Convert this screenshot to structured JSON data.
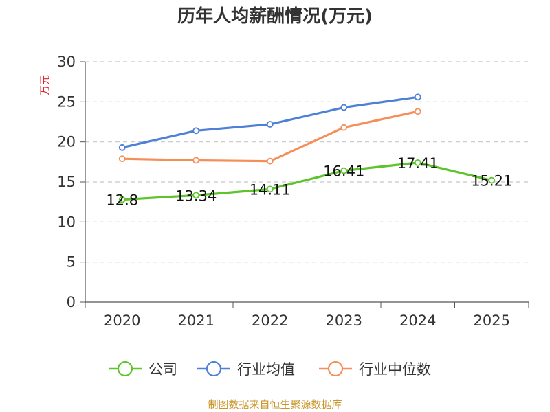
{
  "chart_data": {
    "type": "line",
    "title": "历年人均薪酬情况(万元)",
    "ylabel": "万元",
    "ylim": [
      0,
      30
    ],
    "yticks": [
      0,
      5,
      10,
      15,
      20,
      25,
      30
    ],
    "categories": [
      "2020",
      "2021",
      "2022",
      "2023",
      "2024",
      "2025"
    ],
    "grid": true,
    "legend_position": "bottom",
    "series": [
      {
        "name": "公司",
        "color": "#5ec42b",
        "values": [
          12.8,
          13.34,
          14.11,
          16.41,
          17.41,
          15.21
        ],
        "labels": [
          "12.8",
          "13.34",
          "14.11",
          "16.41",
          "17.41",
          "15.21"
        ]
      },
      {
        "name": "行业均值",
        "color": "#4d80d6",
        "values": [
          19.3,
          21.4,
          22.2,
          24.3,
          25.6,
          null
        ]
      },
      {
        "name": "行业中位数",
        "color": "#f58f59",
        "values": [
          17.9,
          17.7,
          17.6,
          21.8,
          23.8,
          null
        ]
      }
    ]
  },
  "source_text": "制图数据来自恒生聚源数据库"
}
